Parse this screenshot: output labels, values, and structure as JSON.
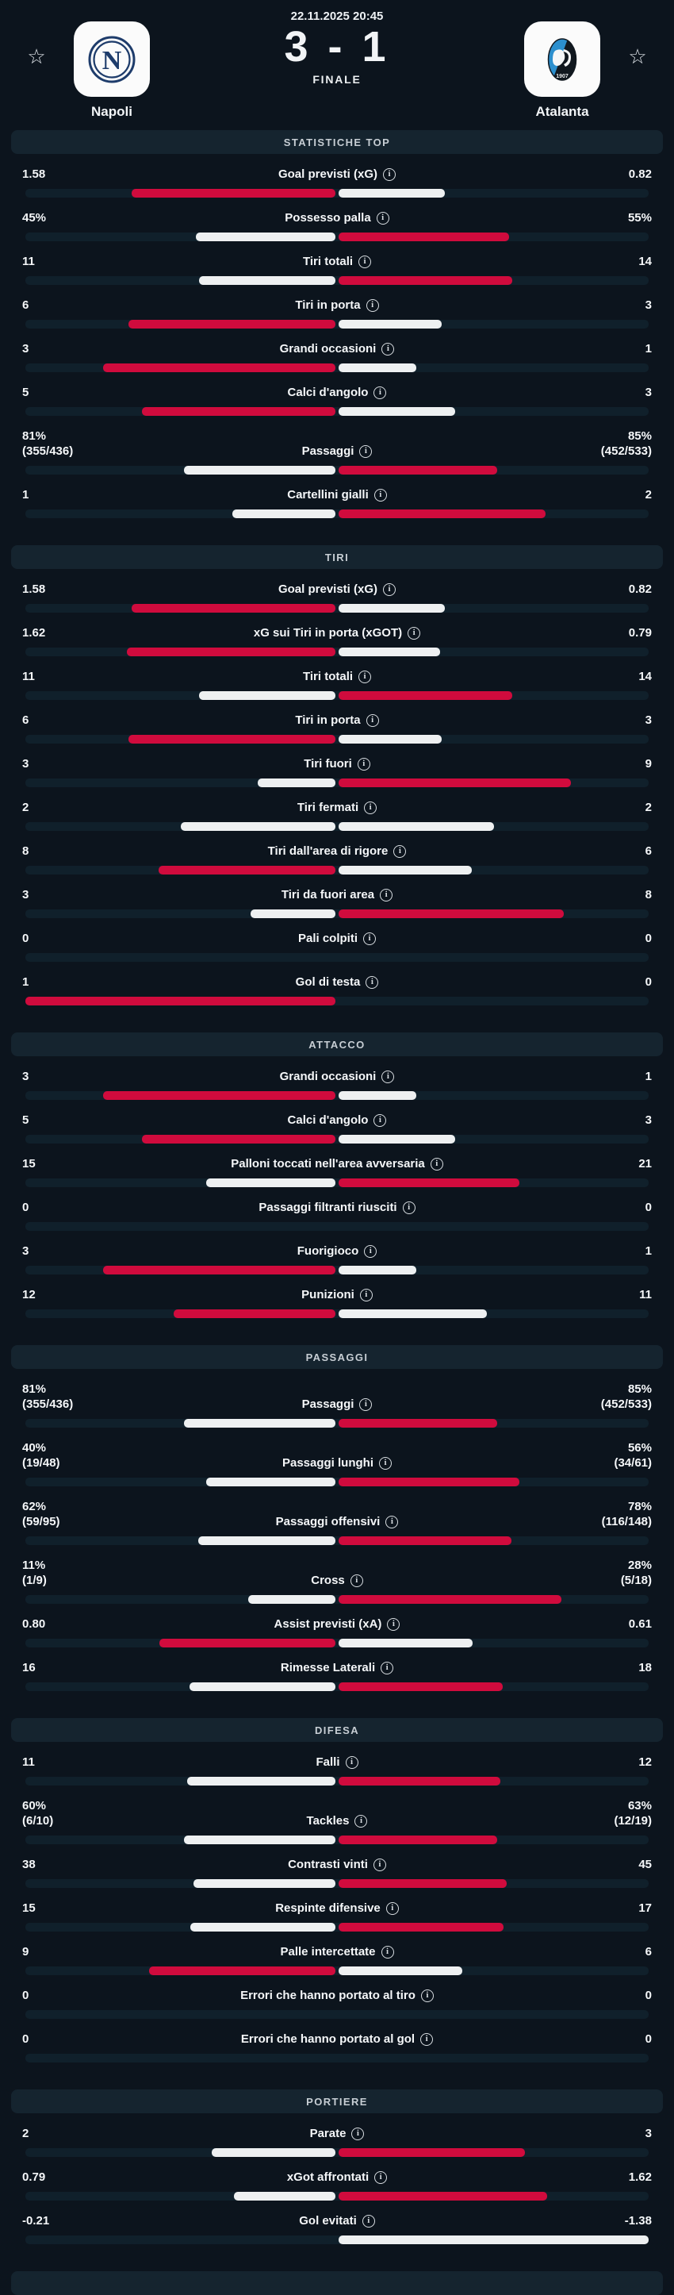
{
  "header": {
    "datetime": "22.11.2025 20:45",
    "score": "3 - 1",
    "status": "FINALE",
    "home_team": "Napoli",
    "away_team": "Atalanta"
  },
  "colors": {
    "bar_red": "#d00b3d",
    "bar_white": "#eef0f1",
    "napoli_navy": "#1e3c6b",
    "atalanta_blue": "#2b8fce",
    "atalanta_black": "#11181f"
  },
  "sections": [
    {
      "title": "STATISTICHE TOP",
      "rows": [
        {
          "label": "Goal previsti (xG)",
          "info": true,
          "h": "1.58",
          "a": "0.82",
          "hn": 1.58,
          "an": 0.82
        },
        {
          "label": "Possesso palla",
          "h": "45%",
          "a": "55%",
          "hn": 45,
          "an": 55
        },
        {
          "label": "Tiri totali",
          "h": "11",
          "a": "14",
          "hn": 11,
          "an": 14
        },
        {
          "label": "Tiri in porta",
          "h": "6",
          "a": "3",
          "hn": 6,
          "an": 3
        },
        {
          "label": "Grandi occasioni",
          "h": "3",
          "a": "1",
          "hn": 3,
          "an": 1
        },
        {
          "label": "Calci d'angolo",
          "h": "5",
          "a": "3",
          "hn": 5,
          "an": 3
        },
        {
          "label": "Passaggi",
          "h": "81%",
          "hs": "(355/436)",
          "a": "85%",
          "as": "(452/533)",
          "hn": 81,
          "an": 85
        },
        {
          "label": "Cartellini gialli",
          "h": "1",
          "a": "2",
          "hn": 1,
          "an": 2
        }
      ]
    },
    {
      "title": "TIRI",
      "rows": [
        {
          "label": "Goal previsti (xG)",
          "info": true,
          "h": "1.58",
          "a": "0.82",
          "hn": 1.58,
          "an": 0.82
        },
        {
          "label": "xG sui Tiri in porta (xGOT)",
          "info": true,
          "h": "1.62",
          "a": "0.79",
          "hn": 1.62,
          "an": 0.79
        },
        {
          "label": "Tiri totali",
          "h": "11",
          "a": "14",
          "hn": 11,
          "an": 14
        },
        {
          "label": "Tiri in porta",
          "h": "6",
          "a": "3",
          "hn": 6,
          "an": 3
        },
        {
          "label": "Tiri fuori",
          "h": "3",
          "a": "9",
          "hn": 3,
          "an": 9
        },
        {
          "label": "Tiri fermati",
          "h": "2",
          "a": "2",
          "hn": 2,
          "an": 2
        },
        {
          "label": "Tiri dall'area di rigore",
          "h": "8",
          "a": "6",
          "hn": 8,
          "an": 6
        },
        {
          "label": "Tiri da fuori area",
          "h": "3",
          "a": "8",
          "hn": 3,
          "an": 8
        },
        {
          "label": "Pali colpiti",
          "h": "0",
          "a": "0",
          "hn": 0,
          "an": 0
        },
        {
          "label": "Gol di testa",
          "h": "1",
          "a": "0",
          "hn": 1,
          "an": 0
        }
      ]
    },
    {
      "title": "ATTACCO",
      "rows": [
        {
          "label": "Grandi occasioni",
          "h": "3",
          "a": "1",
          "hn": 3,
          "an": 1
        },
        {
          "label": "Calci d'angolo",
          "h": "5",
          "a": "3",
          "hn": 5,
          "an": 3
        },
        {
          "label": "Palloni toccati nell'area avversaria",
          "h": "15",
          "a": "21",
          "hn": 15,
          "an": 21
        },
        {
          "label": "Passaggi filtranti riusciti",
          "h": "0",
          "a": "0",
          "hn": 0,
          "an": 0
        },
        {
          "label": "Fuorigioco",
          "h": "3",
          "a": "1",
          "hn": 3,
          "an": 1
        },
        {
          "label": "Punizioni",
          "h": "12",
          "a": "11",
          "hn": 12,
          "an": 11
        }
      ]
    },
    {
      "title": "PASSAGGI",
      "rows": [
        {
          "label": "Passaggi",
          "h": "81%",
          "hs": "(355/436)",
          "a": "85%",
          "as": "(452/533)",
          "hn": 81,
          "an": 85
        },
        {
          "label": "Passaggi lunghi",
          "h": "40%",
          "hs": "(19/48)",
          "a": "56%",
          "as": "(34/61)",
          "hn": 40,
          "an": 56
        },
        {
          "label": "Passaggi offensivi",
          "h": "62%",
          "hs": "(59/95)",
          "a": "78%",
          "as": "(116/148)",
          "hn": 62,
          "an": 78
        },
        {
          "label": "Cross",
          "h": "11%",
          "hs": "(1/9)",
          "a": "28%",
          "as": "(5/18)",
          "hn": 11,
          "an": 28
        },
        {
          "label": "Assist previsti (xA)",
          "info": true,
          "h": "0.80",
          "a": "0.61",
          "hn": 0.8,
          "an": 0.61
        },
        {
          "label": "Rimesse Laterali",
          "h": "16",
          "a": "18",
          "hn": 16,
          "an": 18
        }
      ]
    },
    {
      "title": "DIFESA",
      "rows": [
        {
          "label": "Falli",
          "h": "11",
          "a": "12",
          "hn": 11,
          "an": 12
        },
        {
          "label": "Tackles",
          "h": "60%",
          "hs": "(6/10)",
          "a": "63%",
          "as": "(12/19)",
          "hn": 60,
          "an": 63
        },
        {
          "label": "Contrasti vinti",
          "h": "38",
          "a": "45",
          "hn": 38,
          "an": 45
        },
        {
          "label": "Respinte difensive",
          "h": "15",
          "a": "17",
          "hn": 15,
          "an": 17
        },
        {
          "label": "Palle intercettate",
          "h": "9",
          "a": "6",
          "hn": 9,
          "an": 6
        },
        {
          "label": "Errori che hanno portato al tiro",
          "h": "0",
          "a": "0",
          "hn": 0,
          "an": 0
        },
        {
          "label": "Errori che hanno portato al gol",
          "h": "0",
          "a": "0",
          "hn": 0,
          "an": 0
        }
      ]
    },
    {
      "title": "PORTIERE",
      "rows": [
        {
          "label": "Parate",
          "h": "2",
          "a": "3",
          "hn": 2,
          "an": 3
        },
        {
          "label": "xGot affrontati",
          "info": true,
          "h": "0.79",
          "a": "1.62",
          "hn": 0.79,
          "an": 1.62
        },
        {
          "label": "Gol evitati",
          "info": true,
          "h": "-0.21",
          "a": "-1.38",
          "hn": -0.21,
          "an": -1.38,
          "hf": 0,
          "af": 1
        }
      ]
    }
  ]
}
